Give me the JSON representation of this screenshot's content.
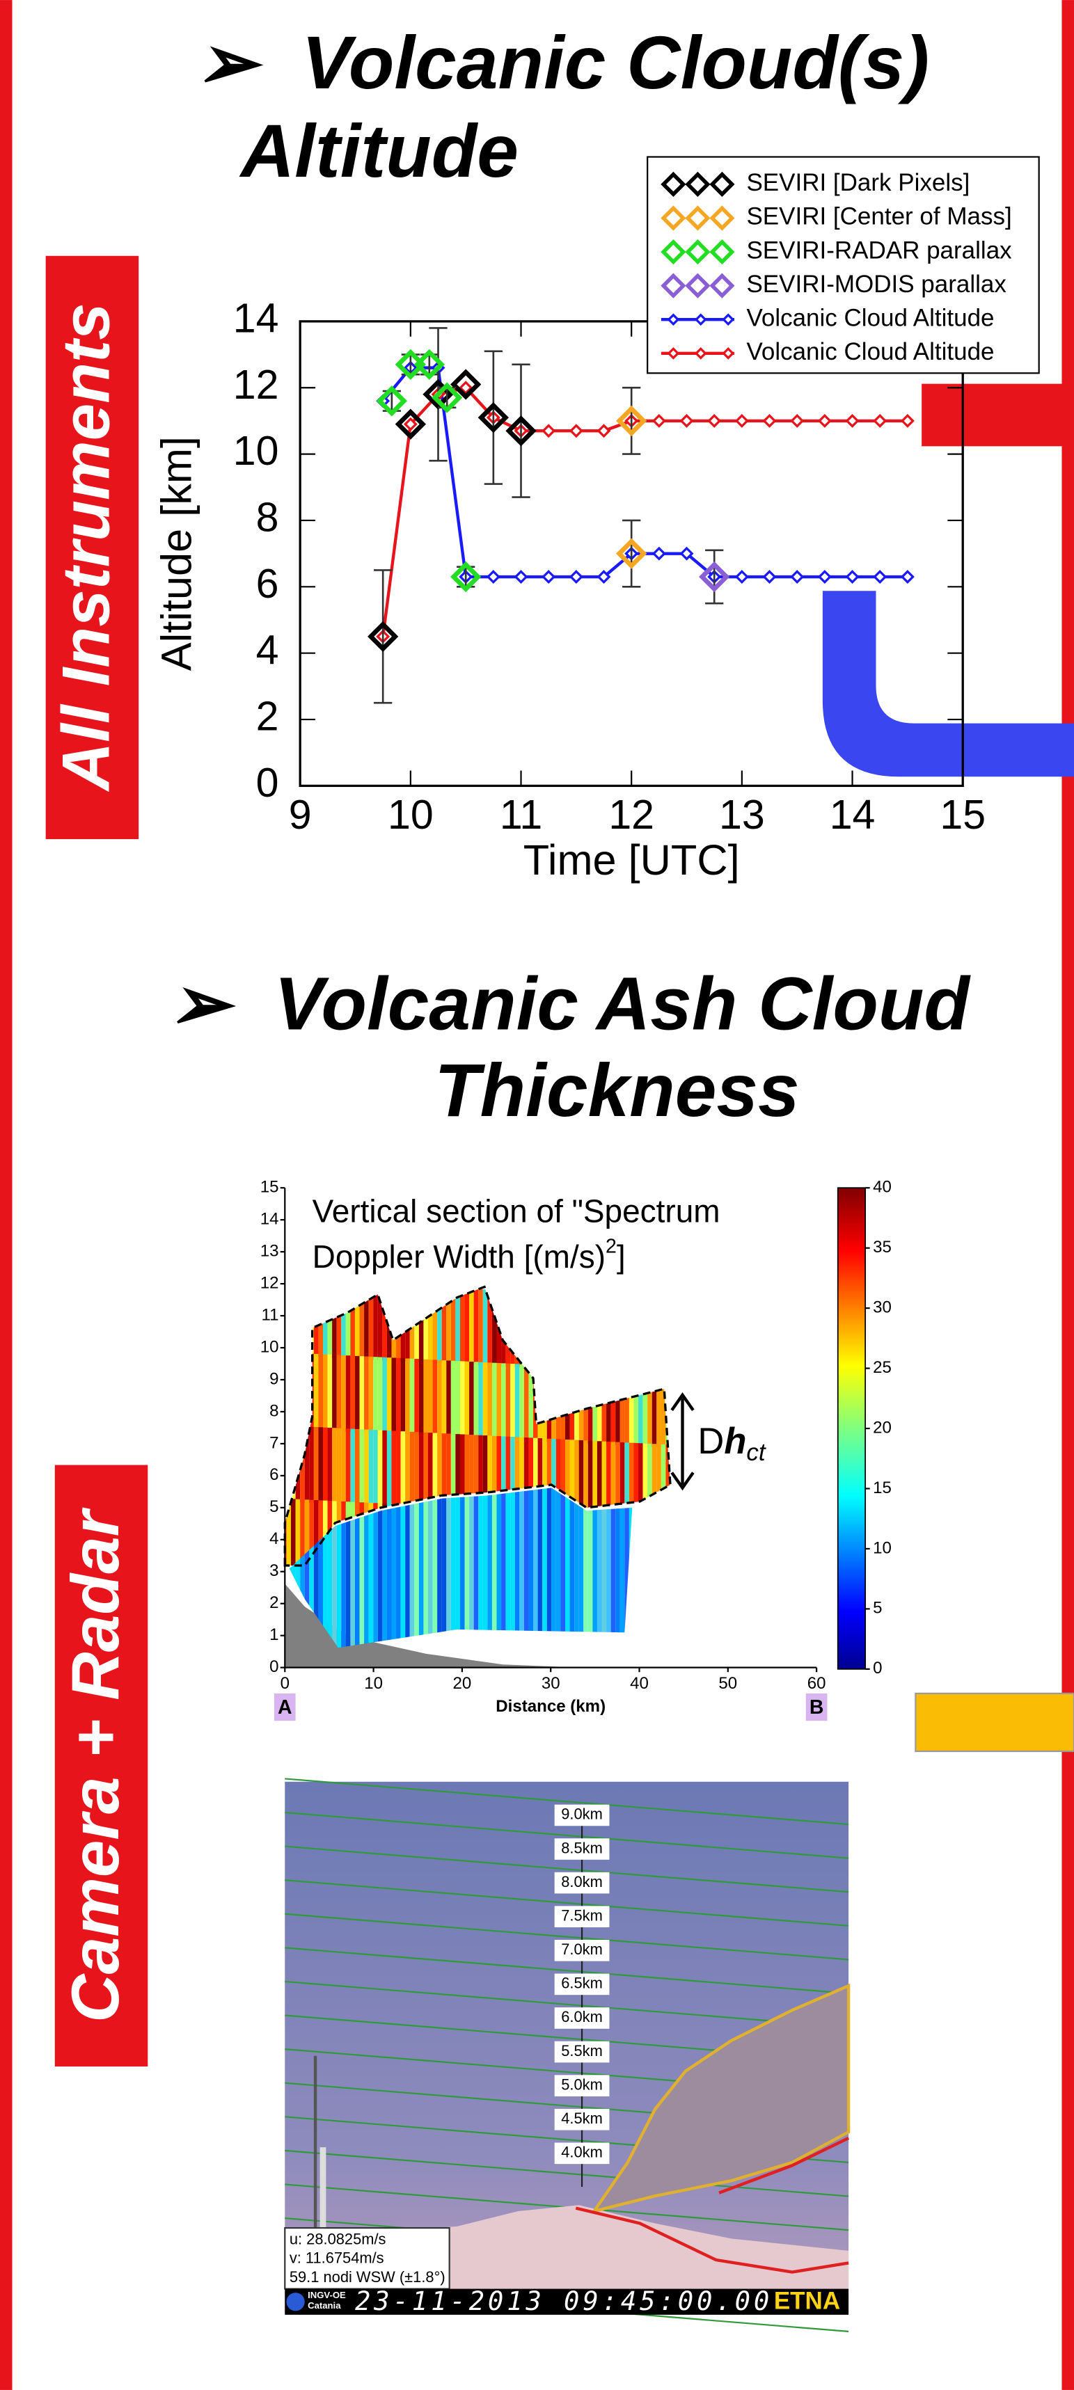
{
  "bullet": "➢",
  "headings": {
    "section1": [
      "Volcanic Cloud(s)",
      "Altitude"
    ],
    "section2": [
      "Volcanic Ash Cloud",
      "Thickness"
    ]
  },
  "side_labels": [
    "All Instruments",
    "Camera + Radar"
  ],
  "chart_data": {
    "type": "line",
    "xlabel": "Time [UTC]",
    "ylabel": "Altitude [km]",
    "xlim": [
      9,
      15
    ],
    "ylim": [
      0,
      14
    ],
    "xticks": [
      9,
      10,
      11,
      12,
      13,
      14,
      15
    ],
    "yticks": [
      0,
      2,
      4,
      6,
      8,
      10,
      12,
      14
    ],
    "legend": "top-right",
    "series": [
      {
        "name": "SEVIRI [Dark Pixels]",
        "color": "#000000",
        "style": "markers",
        "x": [
          9.75,
          10,
          10.25,
          10.5,
          10.75,
          11
        ],
        "values": [
          4.5,
          10.9,
          11.8,
          12.1,
          11.1,
          10.7
        ],
        "errors": [
          2,
          null,
          2,
          null,
          2,
          2
        ]
      },
      {
        "name": "SEVIRI [Center of Mass]",
        "color": "#f5a623",
        "style": "markers",
        "x": [
          12,
          12
        ],
        "values": [
          11.0,
          7.0
        ],
        "errors": [
          1,
          1
        ]
      },
      {
        "name": "SEVIRI-RADAR parallax",
        "color": "#22dd22",
        "style": "markers",
        "x": [
          9.83,
          10,
          10.17,
          10.33,
          10.5
        ],
        "values": [
          11.6,
          12.7,
          12.7,
          11.7,
          6.3
        ],
        "errors": [
          0.3,
          0.3,
          0.3,
          0.3,
          0.3
        ]
      },
      {
        "name": "SEVIRI-MODIS parallax",
        "color": "#8a5fd6",
        "style": "markers",
        "x": [
          12.75
        ],
        "values": [
          6.3
        ],
        "errors": [
          0.8
        ]
      },
      {
        "name": "Volcanic Cloud Altitude",
        "color": "#1a1aff",
        "style": "line",
        "x": [
          9.75,
          10,
          10.25,
          10.5,
          10.75,
          11,
          11.25,
          11.5,
          11.75,
          12,
          12.25,
          12.5,
          12.75,
          13,
          13.25,
          13.5,
          13.75,
          14,
          14.25,
          14.5
        ],
        "values": [
          11.6,
          12.6,
          12.6,
          6.3,
          6.3,
          6.3,
          6.3,
          6.3,
          6.3,
          7.0,
          7.0,
          7.0,
          6.3,
          6.3,
          6.3,
          6.3,
          6.3,
          6.3,
          6.3,
          6.3
        ]
      },
      {
        "name": "Volcanic Cloud Altitude",
        "color": "#e8141b",
        "style": "line",
        "x": [
          9.75,
          10,
          10.25,
          10.5,
          10.75,
          11,
          11.25,
          11.5,
          11.75,
          12,
          12.25,
          12.5,
          12.75,
          13,
          13.25,
          13.5,
          13.75,
          14,
          14.25,
          14.5
        ],
        "values": [
          4.5,
          10.9,
          11.8,
          12.0,
          11.1,
          10.7,
          10.7,
          10.7,
          10.7,
          11.0,
          11.0,
          11.0,
          11.0,
          11.0,
          11.0,
          11.0,
          11.0,
          11.0,
          11.0,
          11.0
        ]
      }
    ]
  },
  "radar": {
    "title_line1": "Vertical section of \"Spectrum",
    "title_line2": [
      "Doppler Width [(m/s)",
      "2",
      "]"
    ],
    "xlabel": "Distance (km)",
    "xlim": [
      0,
      60
    ],
    "ylim": [
      0,
      15
    ],
    "clim": [
      0,
      40
    ],
    "xticks": [
      0,
      10,
      20,
      30,
      40,
      50,
      60
    ],
    "yticks": [
      0,
      1,
      2,
      3,
      4,
      5,
      6,
      7,
      8,
      9,
      10,
      11,
      12,
      13,
      14,
      15
    ],
    "cticks": [
      0,
      5,
      10,
      15,
      20,
      25,
      30,
      35,
      40
    ],
    "endpoints": [
      "A",
      "B"
    ],
    "annotation": [
      "D",
      "h",
      "ct"
    ]
  },
  "camera": {
    "height_labels": [
      "9.0km",
      "8.5km",
      "8.0km",
      "7.5km",
      "7.0km",
      "6.5km",
      "6.0km",
      "5.5km",
      "5.0km",
      "4.5km",
      "4.0km"
    ],
    "info": [
      "u: 28.0825m/s",
      "v: 11.6754m/s",
      "59.1 nodi WSW (±1.8°)"
    ],
    "logo": [
      "INGV-OE",
      "Catania"
    ],
    "timestamp": "23-11-2013 09:45:00.00",
    "site": "ETNA"
  }
}
